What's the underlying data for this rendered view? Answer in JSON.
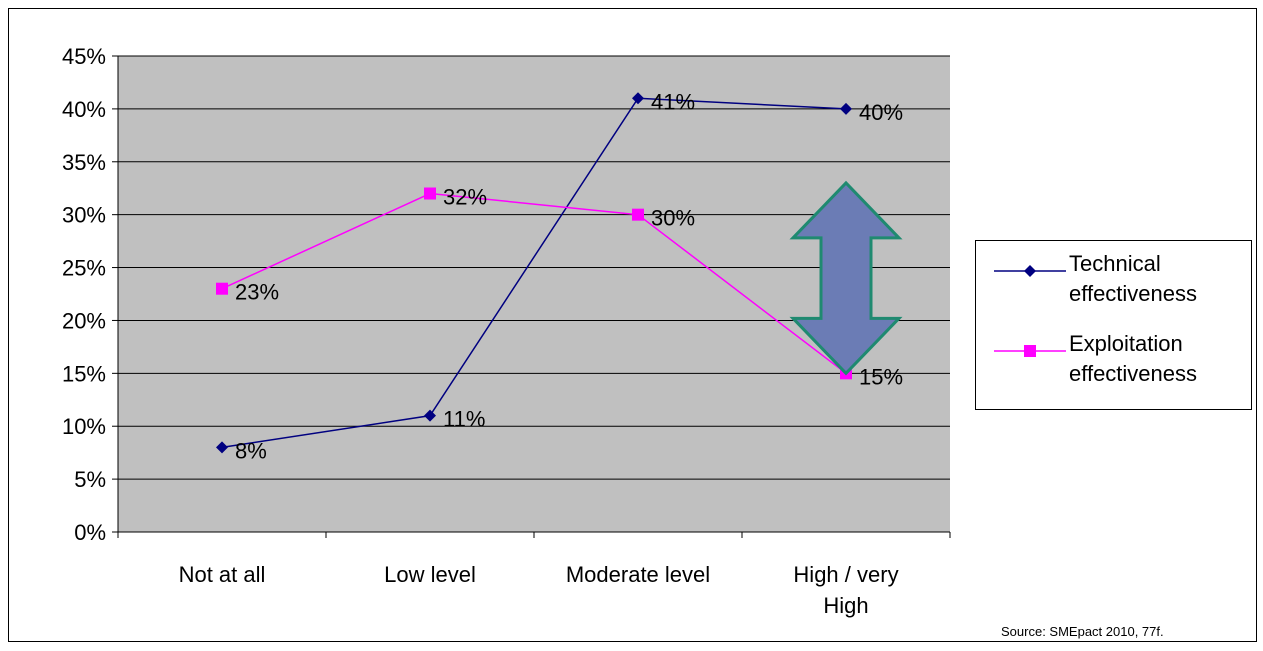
{
  "chart_data": {
    "type": "line",
    "categories": [
      "Not at all",
      "Low level",
      "Moderate level",
      "High / very High"
    ],
    "ylim": [
      0,
      45
    ],
    "yticks": [
      0,
      5,
      10,
      15,
      20,
      25,
      30,
      35,
      40,
      45
    ],
    "ytick_labels": [
      "0%",
      "5%",
      "10%",
      "15%",
      "20%",
      "25%",
      "30%",
      "35%",
      "40%",
      "45%"
    ],
    "grid": true,
    "legend_position": "right",
    "series": [
      {
        "name": "Technical\neffectiveness",
        "values": [
          8,
          11,
          41,
          40
        ],
        "labels": [
          "8%",
          "11%",
          "41%",
          "40%"
        ],
        "color": "#000080",
        "marker": "diamond"
      },
      {
        "name": "Exploitation\neffectiveness",
        "values": [
          23,
          32,
          30,
          15
        ],
        "labels": [
          "23%",
          "32%",
          "30%",
          "15%"
        ],
        "color": "#ff00ff",
        "marker": "square"
      }
    ],
    "annotation": {
      "type": "double-arrow",
      "category": "High / very High",
      "from": 15,
      "to": 33,
      "fill": "#6b7cb5",
      "stroke": "#1f8a70"
    }
  },
  "plot_background": "#c0c0c0",
  "source_text": "Source: SMEpact 2010, 77f."
}
